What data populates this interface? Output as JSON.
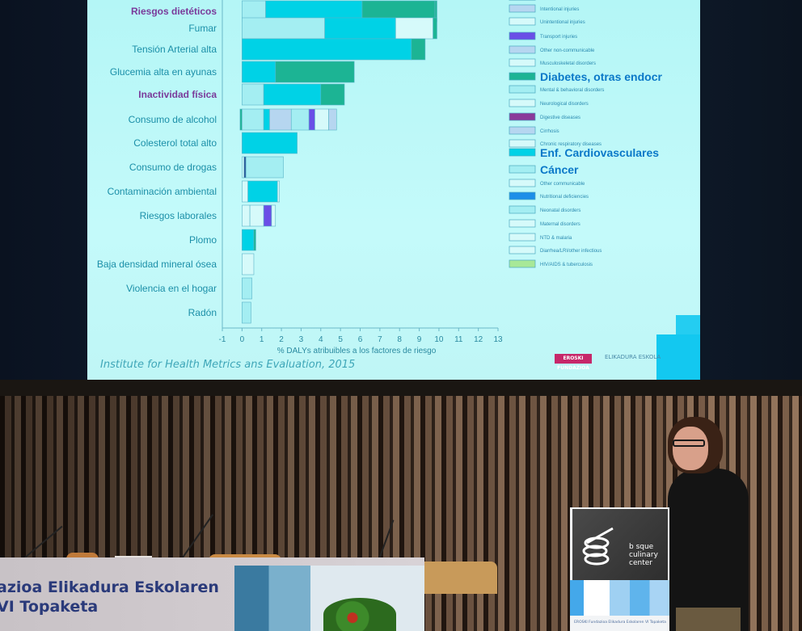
{
  "scene": {
    "banner_line1": "azioa Elikadura Eskolaren",
    "banner_line2": "VI Topaketa",
    "podium_logo": "basque culinary center",
    "podium_logo_line1": "b sque",
    "podium_logo_line2": "culinary",
    "podium_logo_line3": "center",
    "podium_caption": "EROSKI Fundazioa Elikadura Eskolaren VI Topaketa",
    "slide_credit": "Institute for Health Metrics ans Evaluation, 2015",
    "slide_logo_eroski": "EROSKI FUNDAZIOA",
    "slide_logo_eskola": "ELIKADURA ESKOLA"
  },
  "colors": {
    "cyan": "#00d2e6",
    "green": "#1cb494",
    "light": "#a4eef2",
    "pale": "#d6fafa",
    "lavender": "#b6d6f0",
    "purple": "#6a4ee6",
    "magenta": "#8a3a9a",
    "navy": "#2e5a9a",
    "blue": "#1e8ee8",
    "lime": "#a8e898"
  },
  "chart_data": {
    "type": "bar",
    "orientation": "horizontal-stacked",
    "xlabel": "% DALYs atribuibles a los factores de riesgo",
    "xlim": [
      -1,
      13
    ],
    "xticks": [
      "-1",
      "0",
      "1",
      "2",
      "3",
      "4",
      "5",
      "6",
      "7",
      "8",
      "9",
      "10",
      "11",
      "12",
      "13"
    ],
    "categories": [
      {
        "label": "Riesgos dietéticos",
        "highlight": true,
        "segments": [
          [
            0,
            1.2,
            "light"
          ],
          [
            1.2,
            6.1,
            "cyan"
          ],
          [
            6.1,
            9.8,
            "green"
          ],
          [
            9.8,
            9.9,
            "green"
          ]
        ]
      },
      {
        "label": "Fumar",
        "segments": [
          [
            0,
            4.2,
            "light"
          ],
          [
            4.2,
            7.8,
            "cyan"
          ],
          [
            7.8,
            9.7,
            "pale"
          ],
          [
            9.7,
            9.9,
            "green"
          ]
        ]
      },
      {
        "label": "Tensión Arterial alta",
        "segments": [
          [
            0,
            8.6,
            "cyan"
          ],
          [
            8.6,
            9.3,
            "green"
          ]
        ]
      },
      {
        "label": "Glucemia alta en ayunas",
        "segments": [
          [
            0,
            1.7,
            "cyan"
          ],
          [
            1.7,
            5.7,
            "green"
          ]
        ]
      },
      {
        "label": "Inactividad física",
        "highlight": true,
        "segments": [
          [
            0,
            1.1,
            "light"
          ],
          [
            1.1,
            4.0,
            "cyan"
          ],
          [
            4.0,
            5.2,
            "green"
          ]
        ]
      },
      {
        "label": "Consumo de alcohol",
        "segments": [
          [
            -0.1,
            0,
            "green"
          ],
          [
            0,
            1.1,
            "light"
          ],
          [
            1.1,
            1.4,
            "cyan"
          ],
          [
            1.4,
            2.5,
            "lavender"
          ],
          [
            2.5,
            3.4,
            "light"
          ],
          [
            3.4,
            3.7,
            "purple"
          ],
          [
            3.7,
            4.4,
            "pale"
          ],
          [
            4.4,
            4.8,
            "lavender"
          ]
        ]
      },
      {
        "label": "Colesterol total alto",
        "segments": [
          [
            0,
            2.8,
            "cyan"
          ]
        ]
      },
      {
        "label": "Consumo de drogas",
        "segments": [
          [
            0,
            0.1,
            "pale"
          ],
          [
            0.1,
            0.2,
            "navy"
          ],
          [
            0.2,
            2.1,
            "light"
          ]
        ]
      },
      {
        "label": "Contaminación ambiental",
        "segments": [
          [
            0,
            0.3,
            "pale"
          ],
          [
            0.3,
            1.8,
            "cyan"
          ],
          [
            1.8,
            1.9,
            "pale"
          ]
        ]
      },
      {
        "label": "Riesgos laborales",
        "segments": [
          [
            0,
            0.4,
            "pale"
          ],
          [
            0.4,
            1.1,
            "pale"
          ],
          [
            1.1,
            1.5,
            "purple"
          ],
          [
            1.5,
            1.7,
            "pale"
          ]
        ]
      },
      {
        "label": "Plomo",
        "segments": [
          [
            0,
            0.6,
            "cyan"
          ],
          [
            0.6,
            0.7,
            "green"
          ]
        ]
      },
      {
        "label": "Baja densidad mineral ósea",
        "segments": [
          [
            0,
            0.6,
            "pale"
          ]
        ]
      },
      {
        "label": "Violencia  en el hogar",
        "segments": [
          [
            0,
            0.5,
            "light"
          ]
        ]
      },
      {
        "label": "Radón",
        "segments": [
          [
            0,
            0.45,
            "light"
          ]
        ]
      }
    ],
    "legend": [
      {
        "label": "Intentional injuries",
        "color": "lavender"
      },
      {
        "label": "Unintentional injuries",
        "color": "pale"
      },
      {
        "label": "Transport injuries",
        "color": "purple"
      },
      {
        "label": "Other non-communicable",
        "color": "lavender"
      },
      {
        "label": "Musculoskeletal disorders",
        "color": "pale"
      },
      {
        "label": "Diabetes, otras endocr",
        "color": "green",
        "big": true
      },
      {
        "label": "Mental & behavioral disorders",
        "color": "light"
      },
      {
        "label": "Neurological disorders",
        "color": "pale"
      },
      {
        "label": "Digestive diseases",
        "color": "magenta"
      },
      {
        "label": "Cirrhosis",
        "color": "lavender"
      },
      {
        "label": "Chronic respiratory diseases",
        "color": "pale"
      },
      {
        "label": "Enf. Cardiovasculares",
        "color": "cyan",
        "big": true
      },
      {
        "label": "Cáncer",
        "color": "light",
        "big": true
      },
      {
        "label": "Other communicable",
        "color": "pale"
      },
      {
        "label": "Nutritional deficiencies",
        "color": "blue"
      },
      {
        "label": "Neonatal disorders",
        "color": "light"
      },
      {
        "label": "Maternal disorders",
        "color": "pale"
      },
      {
        "label": "NTD & malaria",
        "color": "pale"
      },
      {
        "label": "Diarrhea/LRI/other infectious",
        "color": "pale"
      },
      {
        "label": "HIV/AIDS & tuberculosis",
        "color": "lime"
      }
    ],
    "legend_position": "right"
  }
}
